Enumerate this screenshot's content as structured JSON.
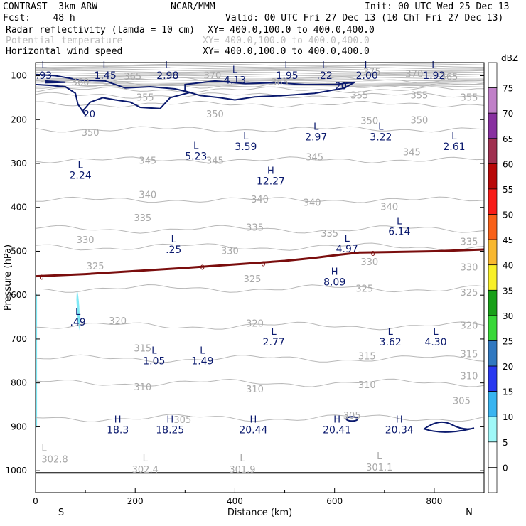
{
  "header": {
    "left1": "CONTRAST  3km ARW",
    "center1": "NCAR/MMM",
    "right1": "Init: 00 UTC Wed 25 Dec 13",
    "left2": "Fcst:    48 h",
    "right2": "Valid: 00 UTC Fri 27 Dec 13 (10 ChT Fri 27 Dec 13)",
    "field1": "Radar reflectivity (lamda = 10 cm)",
    "xy1": "XY= 400.0,100.0 to 400.0,400.0",
    "field2": "Potential temperature",
    "xy2": "XY= 400.0,100.0 to 400.0,400.0",
    "field3": "Horizontal wind speed",
    "xy3": "XY= 400.0,100.0 to 400.0,400.0"
  },
  "colors": {
    "theta": "#b8b8b8",
    "wind": "#0b1a6e",
    "zero": "#7a0d0d",
    "ground": "#000000"
  },
  "chart_data": {
    "type": "contour",
    "xlabel": "Distance (km)",
    "ylabel": "Pressure (hPa)",
    "xlim": [
      0,
      900
    ],
    "ylim": [
      1050,
      70
    ],
    "xticks": [
      0,
      200,
      400,
      600,
      800
    ],
    "yticks": [
      100,
      200,
      300,
      400,
      500,
      600,
      700,
      800,
      900,
      1000
    ],
    "x_endpoints": {
      "left": "S",
      "right": "N"
    },
    "colorbar": {
      "title": "dBZ",
      "levels": [
        0,
        5,
        10,
        15,
        20,
        25,
        30,
        35,
        40,
        45,
        50,
        55,
        60,
        65,
        70,
        75
      ],
      "colors": [
        "#ffffff",
        "#ffffff",
        "#a0f8f8",
        "#38b4f0",
        "#2838f0",
        "#3078c0",
        "#38d838",
        "#18a018",
        "#f8f028",
        "#f8b830",
        "#f86018",
        "#f81c18",
        "#b80808",
        "#a03050",
        "#8830a0",
        "#c080c8",
        "#ffffff"
      ]
    },
    "theta_levels": [
      {
        "value": 375,
        "p": 110
      },
      {
        "value": 370,
        "p": 122
      },
      {
        "value": 365,
        "p": 132
      },
      {
        "value": 360,
        "p": 145
      },
      {
        "value": 355,
        "p": 165
      },
      {
        "value": 350,
        "p": 222
      },
      {
        "value": 345,
        "p": 292
      },
      {
        "value": 340,
        "p": 383
      },
      {
        "value": 335,
        "p": 450
      },
      {
        "value": 330,
        "p": 490
      },
      {
        "value": 325,
        "p": 585
      },
      {
        "value": 320,
        "p": 670
      },
      {
        "value": 315,
        "p": 745
      },
      {
        "value": 310,
        "p": 800
      },
      {
        "value": 305,
        "p": 880
      }
    ],
    "theta_labels": [
      {
        "text": "360",
        "x": 90,
        "p": 115
      },
      {
        "text": "365",
        "x": 195,
        "p": 102
      },
      {
        "text": "370",
        "x": 355,
        "p": 100
      },
      {
        "text": "365",
        "x": 490,
        "p": 115
      },
      {
        "text": "375",
        "x": 675,
        "p": 92
      },
      {
        "text": "370",
        "x": 760,
        "p": 97
      },
      {
        "text": "365",
        "x": 830,
        "p": 103
      },
      {
        "text": "355",
        "x": 220,
        "p": 150
      },
      {
        "text": "355",
        "x": 650,
        "p": 145
      },
      {
        "text": "355",
        "x": 770,
        "p": 145
      },
      {
        "text": "355",
        "x": 870,
        "p": 150
      },
      {
        "text": "350",
        "x": 110,
        "p": 230
      },
      {
        "text": "350",
        "x": 360,
        "p": 188
      },
      {
        "text": "350",
        "x": 670,
        "p": 204
      },
      {
        "text": "350",
        "x": 770,
        "p": 202
      },
      {
        "text": "345",
        "x": 225,
        "p": 294
      },
      {
        "text": "345",
        "x": 360,
        "p": 294
      },
      {
        "text": "345",
        "x": 560,
        "p": 286
      },
      {
        "text": "345",
        "x": 755,
        "p": 275
      },
      {
        "text": "340",
        "x": 225,
        "p": 372
      },
      {
        "text": "340",
        "x": 450,
        "p": 383
      },
      {
        "text": "340",
        "x": 555,
        "p": 390
      },
      {
        "text": "340",
        "x": 710,
        "p": 400
      },
      {
        "text": "335",
        "x": 215,
        "p": 425
      },
      {
        "text": "335",
        "x": 440,
        "p": 447
      },
      {
        "text": "335",
        "x": 590,
        "p": 460
      },
      {
        "text": "335",
        "x": 870,
        "p": 479
      },
      {
        "text": "330",
        "x": 100,
        "p": 475
      },
      {
        "text": "330",
        "x": 390,
        "p": 500
      },
      {
        "text": "330",
        "x": 670,
        "p": 525
      },
      {
        "text": "330",
        "x": 870,
        "p": 537
      },
      {
        "text": "325",
        "x": 120,
        "p": 535
      },
      {
        "text": "325",
        "x": 435,
        "p": 564
      },
      {
        "text": "325",
        "x": 660,
        "p": 586
      },
      {
        "text": "325",
        "x": 870,
        "p": 595
      },
      {
        "text": "320",
        "x": 165,
        "p": 660
      },
      {
        "text": "320",
        "x": 440,
        "p": 665
      },
      {
        "text": "320",
        "x": 870,
        "p": 670
      },
      {
        "text": "315",
        "x": 215,
        "p": 722
      },
      {
        "text": "315",
        "x": 665,
        "p": 740
      },
      {
        "text": "315",
        "x": 870,
        "p": 735
      },
      {
        "text": "310",
        "x": 215,
        "p": 810
      },
      {
        "text": "310",
        "x": 440,
        "p": 815
      },
      {
        "text": "310",
        "x": 665,
        "p": 805
      },
      {
        "text": "310",
        "x": 870,
        "p": 785
      },
      {
        "text": "305",
        "x": 295,
        "p": 885
      },
      {
        "text": "305",
        "x": 635,
        "p": 875
      },
      {
        "text": "305",
        "x": 855,
        "p": 842
      }
    ],
    "extrema": [
      {
        "kind": "L",
        "value": ".93",
        "x": 15,
        "p": 88
      },
      {
        "kind": "L",
        "value": "1.45",
        "x": 140,
        "p": 88
      },
      {
        "kind": "L",
        "value": "2.98",
        "x": 265,
        "p": 88
      },
      {
        "kind": "L",
        "value": "4.13",
        "x": 400,
        "p": 98
      },
      {
        "kind": "L",
        "value": "1.95",
        "x": 505,
        "p": 88
      },
      {
        "kind": "L",
        "value": ".22",
        "x": 580,
        "p": 88
      },
      {
        "kind": "L",
        "value": "2.00",
        "x": 665,
        "p": 88
      },
      {
        "kind": "L",
        "value": "1.92",
        "x": 800,
        "p": 88
      },
      {
        "kind": "L",
        "value": "5.23",
        "x": 322,
        "p": 272
      },
      {
        "kind": "L",
        "value": "3.59",
        "x": 422,
        "p": 250
      },
      {
        "kind": "L",
        "value": "2.97",
        "x": 563,
        "p": 228
      },
      {
        "kind": "L",
        "value": "3.22",
        "x": 693,
        "p": 228
      },
      {
        "kind": "L",
        "value": "2.61",
        "x": 840,
        "p": 250
      },
      {
        "kind": "L",
        "value": "2.24",
        "x": 90,
        "p": 315
      },
      {
        "kind": "H",
        "value": "12.27",
        "x": 472,
        "p": 328
      },
      {
        "kind": "L",
        "value": ".25",
        "x": 277,
        "p": 485
      },
      {
        "kind": "L",
        "value": "4.97",
        "x": 625,
        "p": 483
      },
      {
        "kind": "L",
        "value": "6.14",
        "x": 730,
        "p": 443
      },
      {
        "kind": "H",
        "value": "8.09",
        "x": 600,
        "p": 558
      },
      {
        "kind": "L",
        "value": ".49",
        "x": 85,
        "p": 650
      },
      {
        "kind": "L",
        "value": "2.77",
        "x": 478,
        "p": 695
      },
      {
        "kind": "L",
        "value": "3.62",
        "x": 712,
        "p": 695
      },
      {
        "kind": "L",
        "value": "4.30",
        "x": 803,
        "p": 695
      },
      {
        "kind": "L",
        "value": "1.05",
        "x": 238,
        "p": 738
      },
      {
        "kind": "L",
        "value": "1.49",
        "x": 335,
        "p": 738
      },
      {
        "kind": "H",
        "value": "18.3",
        "x": 165,
        "p": 895
      },
      {
        "kind": "H",
        "value": "18.25",
        "x": 270,
        "p": 895
      },
      {
        "kind": "H",
        "value": "20.44",
        "x": 437,
        "p": 895
      },
      {
        "kind": "H",
        "value": "20.41",
        "x": 605,
        "p": 895
      },
      {
        "kind": "H",
        "value": "20.34",
        "x": 730,
        "p": 895
      }
    ],
    "theta_extrema": [
      {
        "kind": "L",
        "value": "302.8",
        "x": 12,
        "p": 975
      },
      {
        "kind": "L",
        "value": "302.4",
        "x": 220,
        "p": 998
      },
      {
        "kind": "L",
        "value": "301.9",
        "x": 415,
        "p": 998
      },
      {
        "kind": "L",
        "value": "301.1",
        "x": 690,
        "p": 993
      }
    ],
    "wind_labels": [
      {
        "text": "20",
        "x": 108,
        "p": 187
      },
      {
        "text": "20",
        "x": 613,
        "p": 123
      }
    ],
    "zero_dbz_labels": [
      {
        "text": "0",
        "x": 12,
        "p": 558
      },
      {
        "text": "0",
        "x": 335,
        "p": 536
      },
      {
        "text": "0",
        "x": 457,
        "p": 528
      },
      {
        "text": "0",
        "x": 677,
        "p": 504
      }
    ]
  }
}
